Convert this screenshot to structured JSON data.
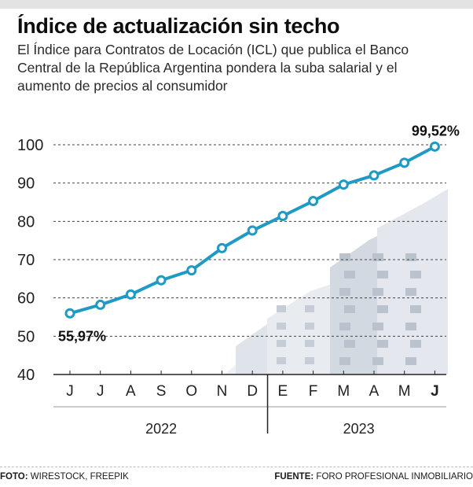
{
  "header": {
    "title": "Índice de actualización sin techo",
    "subtitle": "El Índice para Contratos de Locación (ICL) que publica el Banco Central de la República Argentina pondera la suba salarial y el aumento de precios al consumidor"
  },
  "chart_data": {
    "type": "line",
    "title": "Índice de actualización sin techo",
    "categories": [
      "J",
      "J",
      "A",
      "S",
      "O",
      "N",
      "D",
      "E",
      "F",
      "M",
      "A",
      "M",
      "J"
    ],
    "bold_categories": [
      12
    ],
    "years": [
      {
        "label": "2022",
        "from": 0,
        "to": 6
      },
      {
        "label": "2023",
        "from": 7,
        "to": 12
      }
    ],
    "values": [
      55.97,
      58.2,
      60.9,
      64.6,
      67.2,
      73.0,
      77.6,
      81.4,
      85.3,
      89.6,
      92.0,
      95.3,
      99.52
    ],
    "labels": [
      {
        "index": 0,
        "text": "55,97%"
      },
      {
        "index": 12,
        "text": "99,52%"
      }
    ],
    "ylim": [
      40,
      100
    ],
    "yticks": [
      40,
      50,
      60,
      70,
      80,
      90,
      100
    ],
    "grid": "dashed-horizontal",
    "line_color": "#1e9ac4"
  },
  "footer": {
    "photo_label": "FOTO:",
    "photo_credit": "WIRESTOCK, FREEPIK",
    "source_label": "FUENTE:",
    "source_text": "FORO PROFESIONAL INMOBILIARIO"
  }
}
